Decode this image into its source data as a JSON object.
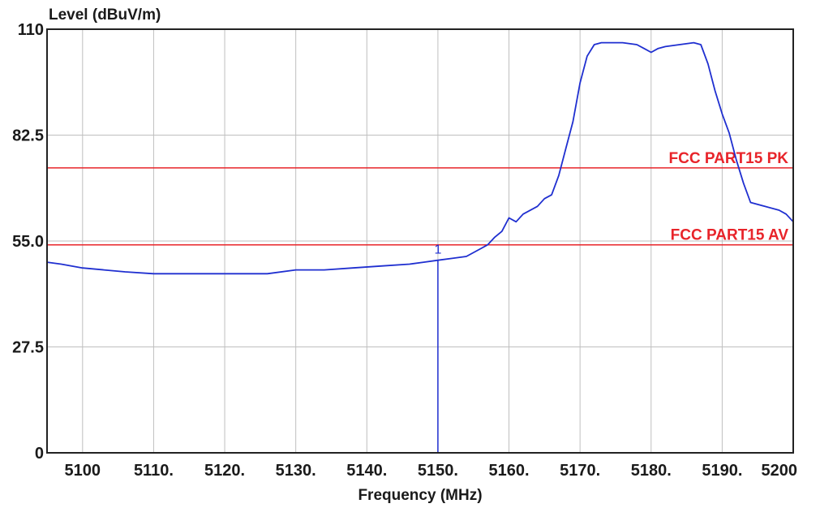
{
  "chart_data": {
    "type": "line",
    "ylabel": "Level (dBuV/m)",
    "xlabel": "Frequency (MHz)",
    "xlim": [
      5095,
      5200
    ],
    "ylim": [
      0,
      110
    ],
    "x_tick_values": [
      5100,
      5110,
      5120,
      5130,
      5140,
      5150,
      5160,
      5170,
      5180,
      5190,
      5200
    ],
    "x_tick_labels": [
      "5100",
      "5110.",
      "5120.",
      "5130.",
      "5140.",
      "5150.",
      "5160.",
      "5170.",
      "5180.",
      "5190.",
      "5200"
    ],
    "y_tick_values": [
      0,
      27.5,
      55,
      82.5,
      110
    ],
    "y_tick_labels": [
      "0",
      "27.5",
      "55.0",
      "82.5",
      "110"
    ],
    "grid": true,
    "colors": {
      "trace": "#1f2fd0",
      "limit": "#e8242a",
      "grid": "#bfbfbf",
      "frame": "#222222"
    },
    "series": [
      {
        "x": [
          5095,
          5097,
          5100,
          5103,
          5106,
          5110,
          5114,
          5118,
          5122,
          5126,
          5130,
          5134,
          5138,
          5142,
          5146,
          5148,
          5150,
          5152,
          5154,
          5156,
          5157,
          5158,
          5159,
          5160,
          5161,
          5162,
          5164,
          5165,
          5166,
          5167,
          5168,
          5169,
          5170,
          5171,
          5172,
          5173,
          5174,
          5176,
          5178,
          5179,
          5180,
          5181,
          5182,
          5184,
          5186,
          5187,
          5188,
          5189,
          5190,
          5191,
          5192,
          5193,
          5194,
          5196,
          5198,
          5199,
          5200
        ],
        "y": [
          49.5,
          49,
          48,
          47.5,
          47,
          46.5,
          46.5,
          46.5,
          46.5,
          46.5,
          47.5,
          47.5,
          48,
          48.5,
          49,
          49.5,
          50,
          50.5,
          51,
          53,
          54,
          56,
          57.5,
          61,
          60,
          62,
          64,
          66,
          67,
          72,
          79,
          86,
          96,
          103,
          106,
          106.5,
          106.5,
          106.5,
          106,
          105,
          104,
          105,
          105.5,
          106,
          106.5,
          106,
          101,
          94,
          88,
          83,
          76,
          70,
          65,
          64,
          63,
          62,
          60
        ]
      }
    ],
    "limit_lines": [
      {
        "label": "FCC PART15  PK",
        "y": 74
      },
      {
        "label": "FCC PART15  AV",
        "y": 54
      }
    ],
    "marker": {
      "label": "1",
      "x": 5150
    }
  }
}
